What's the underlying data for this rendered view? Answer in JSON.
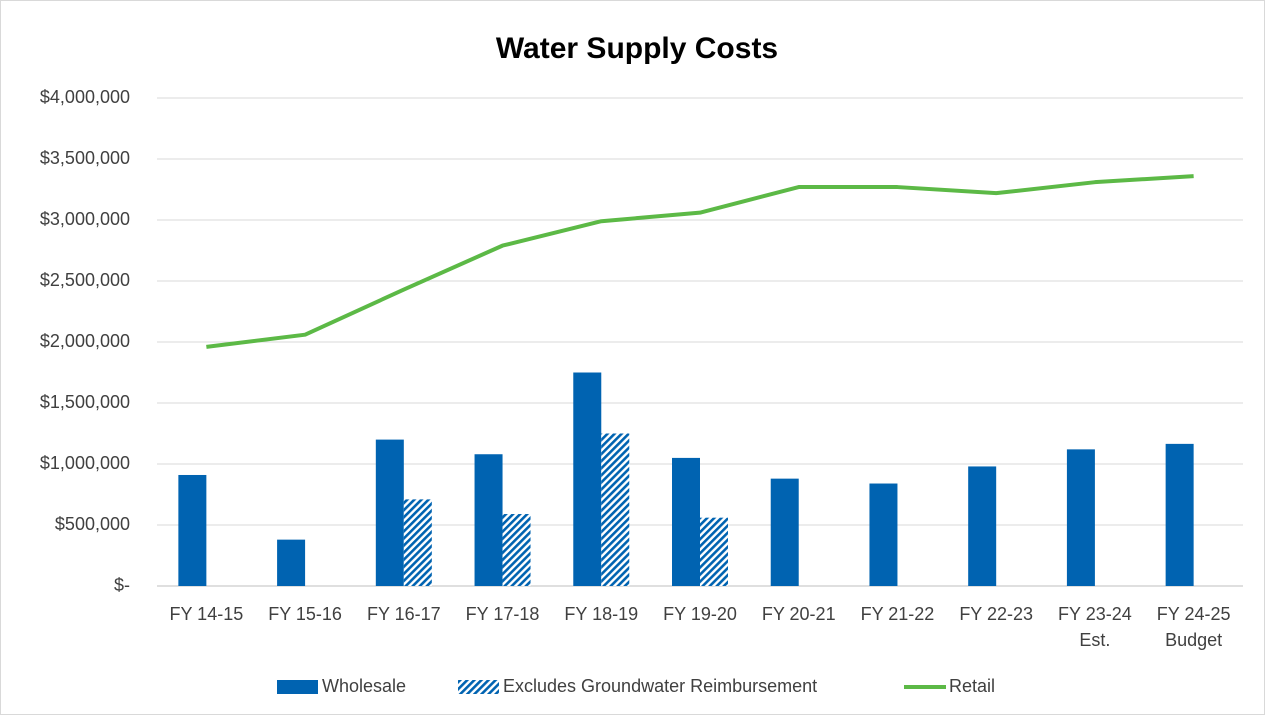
{
  "chart_data": {
    "type": "bar_line",
    "title": "Water Supply Costs",
    "categories": [
      "FY 14-15",
      "FY 15-16",
      "FY 16-17",
      "FY 17-18",
      "FY 18-19",
      "FY 19-20",
      "FY 20-21",
      "FY 21-22",
      "FY 22-23",
      "FY 23-24 Est.",
      "FY 24-25 Budget"
    ],
    "series": [
      {
        "name": "Wholesale",
        "type": "bar",
        "color": "#0063b1",
        "values": [
          910000,
          380000,
          1200000,
          1080000,
          1750000,
          1050000,
          880000,
          840000,
          980000,
          1120000,
          1165000
        ]
      },
      {
        "name": "Excludes Groundwater Reimbursement",
        "type": "bar",
        "color": "#0063b1",
        "pattern": "diagonal",
        "values": [
          null,
          null,
          710000,
          590000,
          1250000,
          560000,
          null,
          null,
          null,
          null,
          null
        ]
      },
      {
        "name": "Retail",
        "type": "line",
        "color": "#5cb946",
        "values": [
          1960000,
          2060000,
          2430000,
          2790000,
          2990000,
          3060000,
          3270000,
          3270000,
          3220000,
          3310000,
          3360000
        ]
      }
    ],
    "ylim": [
      0,
      4000000
    ],
    "yticks": [
      {
        "value": 0,
        "label": "$-"
      },
      {
        "value": 500000,
        "label": "$500,000"
      },
      {
        "value": 1000000,
        "label": "$1,000,000"
      },
      {
        "value": 1500000,
        "label": "$1,500,000"
      },
      {
        "value": 2000000,
        "label": "$2,000,000"
      },
      {
        "value": 2500000,
        "label": "$2,500,000"
      },
      {
        "value": 3000000,
        "label": "$3,000,000"
      },
      {
        "value": 3500000,
        "label": "$3,500,000"
      },
      {
        "value": 4000000,
        "label": "$4,000,000"
      }
    ],
    "grid": true,
    "legend": "bottom"
  }
}
